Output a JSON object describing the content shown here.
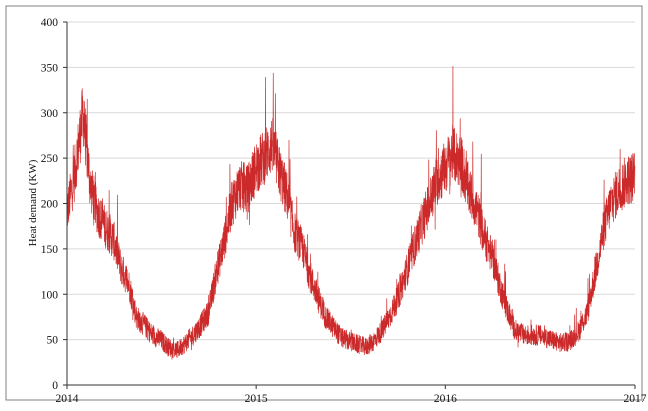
{
  "chart_data": {
    "type": "line",
    "title": "",
    "xlabel": "",
    "ylabel": "Heat demand (KW)",
    "x_ticks": [
      "2014",
      "2015",
      "2016",
      "2017"
    ],
    "y_ticks": [
      "0",
      "50",
      "100",
      "150",
      "200",
      "250",
      "300",
      "350",
      "400"
    ],
    "xlim": [
      "2014-01-01",
      "2017-01-01"
    ],
    "ylim": [
      0,
      400
    ],
    "grid": "horizontal",
    "legend": "none",
    "colors": {
      "series": "#cc2a2a",
      "grid": "#d9d9d9",
      "axis": "#333333",
      "frame": "#808080"
    },
    "series": [
      {
        "name": "",
        "x": [
          "2014-01-01",
          "2014-01-15",
          "2014-02-01",
          "2014-02-15",
          "2014-03-01",
          "2014-03-15",
          "2014-04-01",
          "2014-04-15",
          "2014-05-01",
          "2014-05-15",
          "2014-06-01",
          "2014-06-15",
          "2014-07-01",
          "2014-07-15",
          "2014-08-01",
          "2014-08-15",
          "2014-09-01",
          "2014-09-15",
          "2014-10-01",
          "2014-10-15",
          "2014-11-01",
          "2014-11-15",
          "2014-12-01",
          "2014-12-15",
          "2015-01-01",
          "2015-01-15",
          "2015-02-01",
          "2015-02-15",
          "2015-03-01",
          "2015-03-15",
          "2015-04-01",
          "2015-04-15",
          "2015-05-01",
          "2015-05-15",
          "2015-06-01",
          "2015-06-15",
          "2015-07-01",
          "2015-07-15",
          "2015-08-01",
          "2015-08-15",
          "2015-09-01",
          "2015-09-15",
          "2015-10-01",
          "2015-10-15",
          "2015-11-01",
          "2015-11-15",
          "2015-12-01",
          "2015-12-15",
          "2016-01-01",
          "2016-01-15",
          "2016-02-01",
          "2016-02-15",
          "2016-03-01",
          "2016-03-15",
          "2016-04-01",
          "2016-04-15",
          "2016-05-01",
          "2016-05-15",
          "2016-06-01",
          "2016-06-15",
          "2016-07-01",
          "2016-07-15",
          "2016-08-01",
          "2016-08-15",
          "2016-09-01",
          "2016-09-15",
          "2016-10-01",
          "2016-10-15",
          "2016-11-01",
          "2016-11-15",
          "2016-12-01",
          "2016-12-15",
          "2017-01-01"
        ],
        "values": [
          190,
          230,
          300,
          220,
          190,
          175,
          160,
          130,
          110,
          75,
          65,
          55,
          50,
          42,
          38,
          45,
          55,
          65,
          80,
          120,
          160,
          200,
          220,
          215,
          240,
          250,
          265,
          235,
          210,
          170,
          150,
          120,
          95,
          75,
          62,
          52,
          48,
          45,
          42,
          48,
          60,
          75,
          95,
          120,
          150,
          175,
          200,
          225,
          240,
          255,
          245,
          215,
          195,
          165,
          140,
          110,
          80,
          60,
          55,
          55,
          55,
          52,
          48,
          46,
          50,
          60,
          80,
          120,
          170,
          200,
          215,
          225,
          230
        ]
      }
    ]
  }
}
